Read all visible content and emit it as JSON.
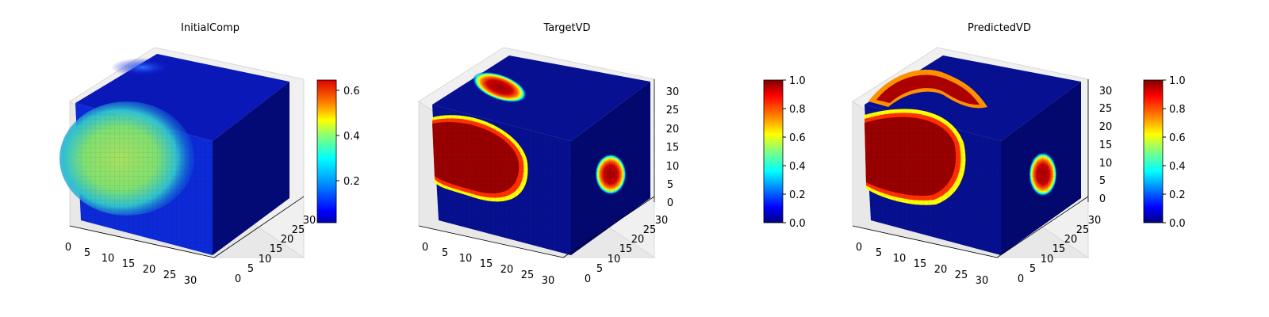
{
  "colors": {
    "jet": [
      "#00007f",
      "#0000ff",
      "#007fff",
      "#00ffff",
      "#7fff7f",
      "#ffff00",
      "#ff7f00",
      "#ff0000",
      "#7f0000"
    ],
    "background": "#ffffff"
  },
  "chart_data": [
    {
      "type": "heatmap",
      "title": "InitialComp",
      "colormap": "jet",
      "x_ticks": [
        0,
        5,
        10,
        15,
        20,
        25,
        30
      ],
      "y_ticks": [
        0,
        5,
        10,
        15,
        20,
        25,
        30
      ],
      "z_ticks": [],
      "xlim": [
        0,
        32
      ],
      "ylim": [
        0,
        32
      ],
      "zlim": [
        0,
        32
      ],
      "colorbar": {
        "min": 0.03,
        "max": 0.65,
        "ticks": [
          0.2,
          0.4,
          0.6
        ],
        "tick_labels": [
          "0.2",
          "0.4",
          "0.6"
        ]
      }
    },
    {
      "type": "heatmap",
      "title": "TargetVD",
      "colormap": "jet",
      "x_ticks": [
        0,
        5,
        10,
        15,
        20,
        25,
        30
      ],
      "y_ticks": [
        0,
        5,
        10,
        15,
        20,
        25,
        30
      ],
      "z_ticks": [
        0,
        5,
        10,
        15,
        20,
        25,
        30
      ],
      "xlim": [
        0,
        32
      ],
      "ylim": [
        0,
        32
      ],
      "zlim": [
        0,
        32
      ],
      "colorbar": {
        "min": 0.0,
        "max": 1.0,
        "ticks": [
          0.0,
          0.2,
          0.4,
          0.6,
          0.8,
          1.0
        ],
        "tick_labels": [
          "0.0",
          "0.2",
          "0.4",
          "0.6",
          "0.8",
          "1.0"
        ]
      }
    },
    {
      "type": "heatmap",
      "title": "PredictedVD",
      "colormap": "jet",
      "x_ticks": [
        0,
        5,
        10,
        15,
        20,
        25,
        30
      ],
      "y_ticks": [
        0,
        5,
        10,
        15,
        20,
        25,
        30
      ],
      "z_ticks": [
        0,
        5,
        10,
        15,
        20,
        25,
        30
      ],
      "xlim": [
        0,
        32
      ],
      "ylim": [
        0,
        32
      ],
      "zlim": [
        0,
        32
      ],
      "colorbar": {
        "min": 0.0,
        "max": 1.0,
        "ticks": [
          0.0,
          0.2,
          0.4,
          0.6,
          0.8,
          1.0
        ],
        "tick_labels": [
          "0.0",
          "0.2",
          "0.4",
          "0.6",
          "0.8",
          "1.0"
        ]
      }
    }
  ]
}
